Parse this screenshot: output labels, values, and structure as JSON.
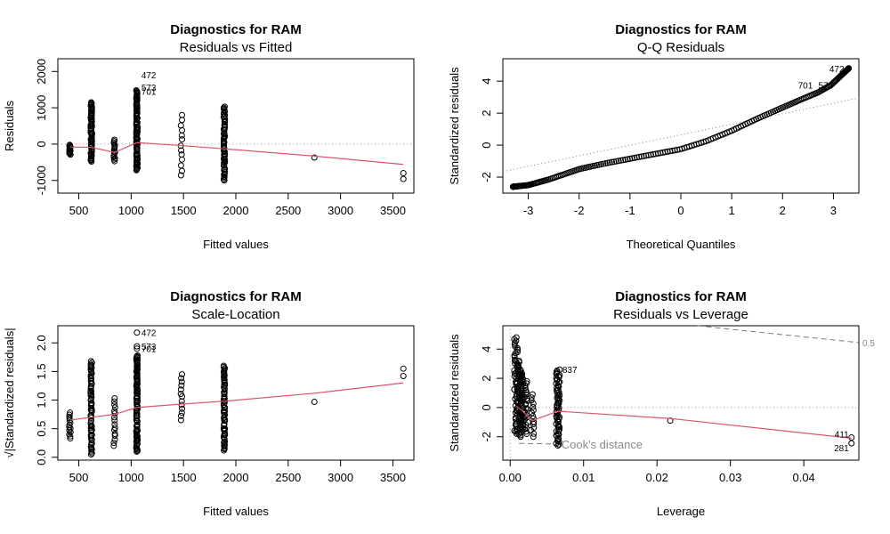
{
  "chart_data": [
    {
      "id": "resid-fitted",
      "type": "scatter",
      "title": "Diagnostics for RAM",
      "subtitle": "Residuals vs Fitted",
      "xlabel": "Fitted values",
      "ylabel": "Residuals",
      "xlim": [
        300,
        3700
      ],
      "ylim": [
        -1350,
        2350
      ],
      "xticks": [
        500,
        1000,
        1500,
        2000,
        2500,
        3000,
        3500
      ],
      "yticks": [
        -1000,
        0,
        1000,
        2000
      ],
      "reference_line": {
        "y": 0
      },
      "groups": [
        {
          "x": 415,
          "min": -290,
          "max": -20,
          "n": 14
        },
        {
          "x": 620,
          "min": -480,
          "max": 1150,
          "n": 70
        },
        {
          "x": 840,
          "min": -470,
          "max": 120,
          "n": 16
        },
        {
          "x": 1055,
          "min": -720,
          "max": 1480,
          "n": 110
        },
        {
          "x": 1480,
          "min": -860,
          "max": 800,
          "n": 13
        },
        {
          "x": 1890,
          "min": -1000,
          "max": 1030,
          "n": 70
        }
      ],
      "points": [
        [
          2750,
          -370
        ],
        [
          3600,
          -800
        ],
        [
          3600,
          -960
        ]
      ],
      "smooth": [
        [
          415,
          -80
        ],
        [
          620,
          -90
        ],
        [
          840,
          -230
        ],
        [
          1055,
          40
        ],
        [
          1480,
          -40
        ],
        [
          1890,
          -130
        ],
        [
          2750,
          -330
        ],
        [
          3600,
          -560
        ]
      ],
      "labels": [
        {
          "text": "472",
          "x": 1055,
          "y": 1910
        },
        {
          "text": "573",
          "x": 1055,
          "y": 1560
        },
        {
          "text": "701",
          "x": 1055,
          "y": 1450
        }
      ]
    },
    {
      "id": "qq",
      "type": "scatter",
      "title": "Diagnostics for RAM",
      "subtitle": "Q-Q Residuals",
      "xlabel": "Theoretical Quantiles",
      "ylabel": "Standardized residuals",
      "xlim": [
        -3.5,
        3.5
      ],
      "ylim": [
        -3,
        5.4
      ],
      "xticks": [
        -3,
        -2,
        -1,
        0,
        1,
        2,
        3
      ],
      "yticks": [
        -2,
        0,
        2,
        4
      ],
      "qq_line": [
        [
          -3.5,
          -1.65
        ],
        [
          3.5,
          2.95
        ]
      ],
      "curve": [
        [
          -3.3,
          -2.6
        ],
        [
          -3.0,
          -2.5
        ],
        [
          -2.6,
          -2.15
        ],
        [
          -2.0,
          -1.5
        ],
        [
          -1.5,
          -1.15
        ],
        [
          -1.0,
          -0.85
        ],
        [
          -0.5,
          -0.55
        ],
        [
          0.0,
          -0.25
        ],
        [
          0.5,
          0.25
        ],
        [
          1.0,
          0.9
        ],
        [
          1.5,
          1.65
        ],
        [
          2.0,
          2.35
        ],
        [
          2.4,
          2.9
        ],
        [
          2.7,
          3.3
        ],
        [
          2.95,
          3.75
        ],
        [
          3.3,
          4.8
        ]
      ],
      "n_points": 220,
      "labels": [
        {
          "text": "472",
          "x": 3.3,
          "y": 4.8
        },
        {
          "text": "701",
          "x": 2.7,
          "y": 3.75
        },
        {
          "text": "573",
          "x": 2.85,
          "y": 3.75
        }
      ]
    },
    {
      "id": "scale-location",
      "type": "scatter",
      "title": "Diagnostics for RAM",
      "subtitle": "Scale-Location",
      "xlabel": "Fitted values",
      "ylabel": "√|Standardized residuals|",
      "xlim": [
        300,
        3700
      ],
      "ylim": [
        -0.05,
        2.3
      ],
      "xticks": [
        500,
        1000,
        1500,
        2000,
        2500,
        3000,
        3500
      ],
      "yticks": [
        0.0,
        0.5,
        1.0,
        1.5,
        2.0
      ],
      "groups": [
        {
          "x": 415,
          "min": 0.33,
          "max": 0.78,
          "n": 14
        },
        {
          "x": 620,
          "min": 0.05,
          "max": 1.68,
          "n": 70
        },
        {
          "x": 840,
          "min": 0.2,
          "max": 1.03,
          "n": 16
        },
        {
          "x": 1055,
          "min": 0.1,
          "max": 1.78,
          "n": 110
        },
        {
          "x": 1480,
          "min": 0.65,
          "max": 1.45,
          "n": 13
        },
        {
          "x": 1890,
          "min": 0.12,
          "max": 1.6,
          "n": 70
        }
      ],
      "points": [
        [
          1055,
          2.18
        ],
        [
          1055,
          1.94
        ],
        [
          1055,
          1.9
        ],
        [
          2750,
          0.97
        ],
        [
          3600,
          1.42
        ],
        [
          3600,
          1.55
        ]
      ],
      "smooth": [
        [
          415,
          0.65
        ],
        [
          620,
          0.7
        ],
        [
          840,
          0.75
        ],
        [
          1055,
          0.87
        ],
        [
          1480,
          0.93
        ],
        [
          1890,
          0.98
        ],
        [
          2750,
          1.12
        ],
        [
          3600,
          1.3
        ]
      ],
      "labels": [
        {
          "text": "472",
          "x": 1055,
          "y": 2.18
        },
        {
          "text": "573",
          "x": 1055,
          "y": 1.94
        },
        {
          "text": "701",
          "x": 1055,
          "y": 1.9
        }
      ]
    },
    {
      "id": "resid-leverage",
      "type": "scatter",
      "title": "Diagnostics for RAM",
      "subtitle": "Residuals vs Leverage",
      "xlabel": "Leverage",
      "ylabel": "Standardized residuals",
      "xlim": [
        -0.001,
        0.0475
      ],
      "ylim": [
        -3.6,
        5.6
      ],
      "xticks": [
        0.0,
        0.01,
        0.02,
        0.03,
        0.04
      ],
      "tick_labels": [
        "0.00",
        "0.01",
        "0.02",
        "0.03",
        "0.04"
      ],
      "yticks": [
        -2,
        0,
        2,
        4
      ],
      "reference_line": {
        "y": 0,
        "x": 0
      },
      "groups": [
        {
          "x": 0.0008,
          "min": -1.8,
          "max": 4.8,
          "n": 55
        },
        {
          "x": 0.0012,
          "min": -2.0,
          "max": 3.2,
          "n": 55
        },
        {
          "x": 0.0016,
          "min": -1.5,
          "max": 2.6,
          "n": 45
        },
        {
          "x": 0.0022,
          "min": -1.8,
          "max": 1.8,
          "n": 25
        },
        {
          "x": 0.003,
          "min": -2.0,
          "max": 0.9,
          "n": 15
        },
        {
          "x": 0.0065,
          "min": -2.6,
          "max": 2.6,
          "n": 70
        }
      ],
      "points": [
        [
          0.0218,
          -0.9
        ],
        [
          0.0465,
          -2.05
        ],
        [
          0.0465,
          -2.45
        ]
      ],
      "smooth": [
        [
          0.0008,
          0.1
        ],
        [
          0.0016,
          -0.2
        ],
        [
          0.0022,
          -0.5
        ],
        [
          0.003,
          -0.9
        ],
        [
          0.0065,
          -0.25
        ],
        [
          0.0218,
          -0.75
        ],
        [
          0.0465,
          -2.1
        ]
      ],
      "cooks_upper": [
        [
          0.0255,
          5.6
        ],
        [
          0.035,
          5.1
        ],
        [
          0.0475,
          4.45
        ]
      ],
      "cooks_lower": [
        [
          0.0012,
          -2.45
        ],
        [
          0.006,
          -2.5
        ]
      ],
      "cooks_label": "Cook's distance",
      "cooks_level_label": "0.5",
      "labels": [
        {
          "text": "837",
          "x": 0.0065,
          "y": 2.6
        },
        {
          "text": "411",
          "x": 0.0465,
          "y": -2.05
        },
        {
          "text": "281",
          "x": 0.0465,
          "y": -2.45
        }
      ]
    }
  ]
}
